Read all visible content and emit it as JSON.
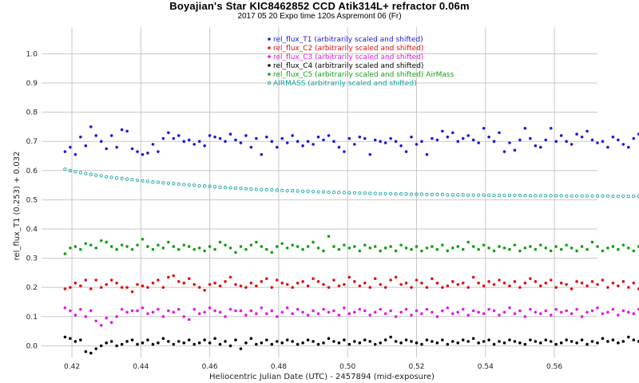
{
  "chart_data": {
    "type": "scatter",
    "title": "Boyajian's Star KIC8462852      CCD Atik314L+  refractor  0.06m",
    "subtitle": "2017 05 20  Expo time 120s    Aspremont  06 (Fr)",
    "xlabel": "Heliocentric Julian Date (UTC) - 2457894 (mid-exposure)",
    "ylabel": "rel_flux_T1 (0.253) + 0.032",
    "xlim": [
      0.4135,
      0.5725
    ],
    "ylim": [
      -0.04,
      1.075
    ],
    "xticks": [
      0.42,
      0.44,
      0.46,
      0.48,
      0.5,
      0.52,
      0.54,
      0.56
    ],
    "xtick_labels": [
      "0.42",
      "0.44",
      "0.46",
      "0.48",
      "0.50",
      "0.52",
      "0.54",
      "0.56"
    ],
    "yticks": [
      0.0,
      0.1,
      0.2,
      0.3,
      0.4,
      0.5,
      0.6,
      0.7,
      0.8,
      0.9,
      1.0
    ],
    "ytick_labels": [
      "0.0",
      "0.1",
      "0.2",
      "0.3",
      "0.4",
      "0.5",
      "0.6",
      "0.7",
      "0.8",
      "0.9",
      "1.0"
    ],
    "grid": true,
    "legend_position": "top-center",
    "x_start": 0.418,
    "x_step": 0.0015,
    "series": [
      {
        "name": "rel_flux_T1 (arbitrarily scaled and shifted)",
        "color": "#1c1cd6",
        "marker": "dot",
        "values": [
          0.665,
          0.68,
          0.655,
          0.715,
          0.685,
          0.75,
          0.72,
          0.7,
          0.675,
          0.72,
          0.68,
          0.74,
          0.735,
          0.675,
          0.665,
          0.655,
          0.66,
          0.69,
          0.665,
          0.71,
          0.73,
          0.71,
          0.72,
          0.7,
          0.705,
          0.69,
          0.7,
          0.685,
          0.72,
          0.715,
          0.71,
          0.7,
          0.725,
          0.705,
          0.695,
          0.72,
          0.68,
          0.71,
          0.655,
          0.715,
          0.7,
          0.68,
          0.71,
          0.695,
          0.72,
          0.7,
          0.685,
          0.7,
          0.69,
          0.715,
          0.705,
          0.72,
          0.7,
          0.68,
          0.665,
          0.71,
          0.69,
          0.715,
          0.71,
          0.655,
          0.705,
          0.7,
          0.695,
          0.71,
          0.7,
          0.685,
          0.665,
          0.715,
          0.69,
          0.7,
          0.655,
          0.71,
          0.705,
          0.735,
          0.715,
          0.73,
          0.7,
          0.71,
          0.72,
          0.705,
          0.695,
          0.745,
          0.715,
          0.7,
          0.73,
          0.665,
          0.695,
          0.67,
          0.705,
          0.745,
          0.71,
          0.685,
          0.68,
          0.705,
          0.745,
          0.7,
          0.72,
          0.7,
          0.69,
          0.725,
          0.715,
          0.735,
          0.705,
          0.695,
          0.7,
          0.68,
          0.715,
          0.705,
          0.69,
          0.68,
          0.71,
          0.725,
          0.72,
          0.715,
          0.73,
          0.705,
          0.715,
          0.72,
          0.715,
          0.705,
          0.72
        ]
      },
      {
        "name": "rel_flux_C2 (arbitrarily scaled and shifted)",
        "color": "#e01414",
        "marker": "dot",
        "values": [
          0.195,
          0.2,
          0.215,
          0.205,
          0.225,
          0.195,
          0.225,
          0.2,
          0.21,
          0.225,
          0.215,
          0.2,
          0.2,
          0.185,
          0.21,
          0.205,
          0.2,
          0.215,
          0.225,
          0.2,
          0.235,
          0.24,
          0.22,
          0.215,
          0.23,
          0.21,
          0.2,
          0.19,
          0.21,
          0.215,
          0.205,
          0.22,
          0.235,
          0.21,
          0.205,
          0.2,
          0.215,
          0.205,
          0.22,
          0.23,
          0.2,
          0.225,
          0.215,
          0.21,
          0.2,
          0.215,
          0.22,
          0.205,
          0.23,
          0.22,
          0.21,
          0.2,
          0.225,
          0.205,
          0.21,
          0.235,
          0.22,
          0.205,
          0.215,
          0.2,
          0.23,
          0.21,
          0.2,
          0.225,
          0.235,
          0.21,
          0.215,
          0.2,
          0.225,
          0.215,
          0.2,
          0.23,
          0.215,
          0.2,
          0.205,
          0.22,
          0.21,
          0.215,
          0.2,
          0.235,
          0.215,
          0.205,
          0.22,
          0.21,
          0.225,
          0.215,
          0.205,
          0.22,
          0.2,
          0.215,
          0.23,
          0.22,
          0.205,
          0.215,
          0.225,
          0.2,
          0.215,
          0.21,
          0.195,
          0.22,
          0.215,
          0.205,
          0.22,
          0.21,
          0.225,
          0.2,
          0.215,
          0.205,
          0.22,
          0.2,
          0.215,
          0.195,
          0.24,
          0.215,
          0.2,
          0.225,
          0.22,
          0.205,
          0.215,
          0.205,
          0.205
        ]
      },
      {
        "name": "rel_flux_C3 (arbitrarily scaled and shifted)",
        "color": "#e21ce2",
        "marker": "dot",
        "values": [
          0.13,
          0.12,
          0.105,
          0.125,
          0.1,
          0.12,
          0.085,
          0.07,
          0.095,
          0.08,
          0.1,
          0.125,
          0.115,
          0.12,
          0.12,
          0.13,
          0.11,
          0.115,
          0.125,
          0.1,
          0.12,
          0.115,
          0.125,
          0.1,
          0.09,
          0.125,
          0.11,
          0.115,
          0.13,
          0.12,
          0.115,
          0.1,
          0.125,
          0.12,
          0.12,
          0.105,
          0.12,
          0.11,
          0.13,
          0.11,
          0.12,
          0.1,
          0.115,
          0.13,
          0.11,
          0.125,
          0.115,
          0.105,
          0.12,
          0.11,
          0.125,
          0.115,
          0.12,
          0.105,
          0.13,
          0.11,
          0.115,
          0.125,
          0.12,
          0.105,
          0.115,
          0.125,
          0.11,
          0.12,
          0.1,
          0.115,
          0.125,
          0.105,
          0.12,
          0.11,
          0.125,
          0.115,
          0.1,
          0.12,
          0.13,
          0.11,
          0.115,
          0.125,
          0.105,
          0.12,
          0.115,
          0.11,
          0.125,
          0.12,
          0.105,
          0.115,
          0.13,
          0.11,
          0.12,
          0.1,
          0.125,
          0.115,
          0.11,
          0.12,
          0.105,
          0.125,
          0.115,
          0.12,
          0.11,
          0.125,
          0.1,
          0.115,
          0.12,
          0.13,
          0.11,
          0.115,
          0.125,
          0.105,
          0.12,
          0.115,
          0.11,
          0.125,
          0.12,
          0.105,
          0.115,
          0.13,
          0.11,
          0.12,
          0.1,
          0.11,
          0.12
        ]
      },
      {
        "name": "rel_flux_C4 (arbitrarily scaled and shifted)",
        "color": "#000000",
        "marker": "dot",
        "values": [
          0.03,
          0.025,
          0.015,
          0.02,
          -0.02,
          -0.025,
          -0.01,
          0.0,
          0.01,
          0.015,
          0.0,
          0.005,
          0.015,
          0.02,
          0.005,
          0.01,
          0.02,
          0.005,
          0.01,
          0.025,
          0.015,
          0.005,
          0.015,
          0.01,
          0.02,
          0.005,
          0.01,
          0.02,
          0.01,
          0.025,
          0.005,
          0.015,
          0.0,
          0.02,
          -0.01,
          0.01,
          0.025,
          0.005,
          0.01,
          0.02,
          0.005,
          0.015,
          0.01,
          0.02,
          0.015,
          0.005,
          0.01,
          0.02,
          0.015,
          0.005,
          0.01,
          0.025,
          0.015,
          0.01,
          0.02,
          0.005,
          0.015,
          0.01,
          0.02,
          0.015,
          0.005,
          0.01,
          0.02,
          0.03,
          0.015,
          0.01,
          0.02,
          0.015,
          0.01,
          0.005,
          0.02,
          0.015,
          0.01,
          0.02,
          0.005,
          0.015,
          0.01,
          0.02,
          0.015,
          0.025,
          0.01,
          0.015,
          0.02,
          0.005,
          0.015,
          0.01,
          0.02,
          0.015,
          0.01,
          0.005,
          0.02,
          0.015,
          0.01,
          0.02,
          0.015,
          0.005,
          0.01,
          0.02,
          0.015,
          0.01,
          0.02,
          0.005,
          0.015,
          0.01,
          0.025,
          0.015,
          0.02,
          0.01,
          0.015,
          0.03,
          0.02,
          0.015,
          0.03,
          0.02,
          0.01,
          0.005,
          0.015,
          0.02,
          0.005,
          0.015,
          0.025
        ]
      },
      {
        "name": "rel_flux_C5 (arbitrarily scaled and shifted) AirMass",
        "color": "#14a014",
        "marker": "dot",
        "values": [
          0.315,
          0.335,
          0.34,
          0.33,
          0.35,
          0.345,
          0.335,
          0.36,
          0.355,
          0.34,
          0.33,
          0.345,
          0.34,
          0.33,
          0.345,
          0.365,
          0.34,
          0.33,
          0.345,
          0.335,
          0.355,
          0.34,
          0.33,
          0.345,
          0.34,
          0.33,
          0.335,
          0.325,
          0.34,
          0.33,
          0.355,
          0.345,
          0.335,
          0.32,
          0.34,
          0.33,
          0.345,
          0.355,
          0.34,
          0.33,
          0.32,
          0.34,
          0.35,
          0.335,
          0.345,
          0.34,
          0.33,
          0.34,
          0.355,
          0.335,
          0.325,
          0.375,
          0.34,
          0.33,
          0.345,
          0.335,
          0.34,
          0.325,
          0.345,
          0.335,
          0.34,
          0.325,
          0.335,
          0.34,
          0.325,
          0.345,
          0.335,
          0.33,
          0.34,
          0.325,
          0.335,
          0.34,
          0.33,
          0.345,
          0.325,
          0.335,
          0.34,
          0.33,
          0.355,
          0.34,
          0.33,
          0.345,
          0.335,
          0.325,
          0.34,
          0.335,
          0.33,
          0.345,
          0.325,
          0.335,
          0.34,
          0.33,
          0.345,
          0.335,
          0.325,
          0.34,
          0.33,
          0.345,
          0.335,
          0.325,
          0.34,
          0.33,
          0.355,
          0.34,
          0.325,
          0.335,
          0.34,
          0.33,
          0.345,
          0.335,
          0.325,
          0.34,
          0.33,
          0.345,
          0.335,
          0.33,
          0.325,
          0.34,
          0.33,
          0.325,
          0.32
        ]
      },
      {
        "name": "AIRMASS (arbitrarily scaled and shifted)",
        "color": "#1aa2a2",
        "marker": "ring",
        "values": [
          0.605,
          0.6,
          0.596,
          0.593,
          0.59,
          0.587,
          0.584,
          0.582,
          0.579,
          0.577,
          0.575,
          0.573,
          0.571,
          0.569,
          0.567,
          0.565,
          0.563,
          0.561,
          0.56,
          0.558,
          0.557,
          0.555,
          0.554,
          0.552,
          0.551,
          0.55,
          0.548,
          0.547,
          0.546,
          0.545,
          0.543,
          0.542,
          0.541,
          0.54,
          0.539,
          0.538,
          0.537,
          0.536,
          0.535,
          0.535,
          0.534,
          0.533,
          0.532,
          0.531,
          0.531,
          0.53,
          0.529,
          0.529,
          0.528,
          0.527,
          0.527,
          0.526,
          0.526,
          0.525,
          0.525,
          0.524,
          0.524,
          0.523,
          0.523,
          0.522,
          0.522,
          0.521,
          0.521,
          0.521,
          0.52,
          0.52,
          0.52,
          0.519,
          0.519,
          0.519,
          0.518,
          0.518,
          0.518,
          0.518,
          0.517,
          0.517,
          0.517,
          0.517,
          0.516,
          0.516,
          0.516,
          0.516,
          0.516,
          0.515,
          0.515,
          0.515,
          0.515,
          0.515,
          0.515,
          0.514,
          0.514,
          0.514,
          0.514,
          0.514,
          0.514,
          0.514,
          0.514,
          0.513,
          0.513,
          0.513,
          0.513,
          0.513,
          0.513,
          0.513,
          0.513,
          0.513,
          0.512,
          0.512,
          0.512,
          0.512,
          0.512,
          0.512,
          0.512,
          0.512,
          0.512,
          0.512,
          0.512,
          0.512,
          0.512,
          0.511,
          0.511
        ]
      }
    ]
  }
}
